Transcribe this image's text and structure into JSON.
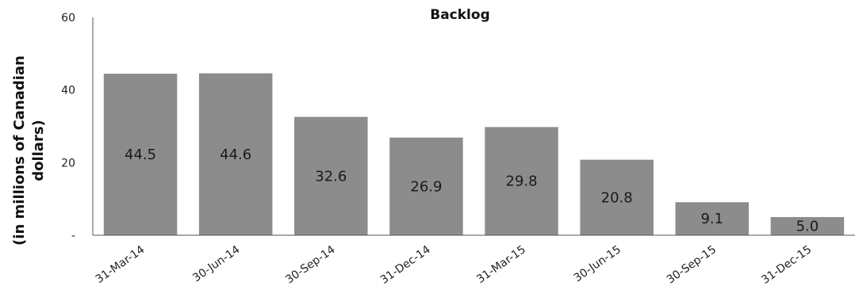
{
  "chart_data": {
    "type": "bar",
    "title": "Backlog",
    "xlabel": "",
    "ylabel_lines": [
      "(in millions of Canadian",
      "dollars)"
    ],
    "categories": [
      "31-Mar-14",
      "30-Jun-14",
      "30-Sep-14",
      "31-Dec-14",
      "31-Mar-15",
      "30-Jun-15",
      "30-Sep-15",
      "31-Dec-15"
    ],
    "values": [
      44.5,
      44.6,
      32.6,
      26.9,
      29.8,
      20.8,
      9.1,
      5.0
    ],
    "data_labels": [
      "44.5",
      "44.6",
      "32.6",
      "26.9",
      "29.8",
      "20.8",
      "9.1",
      "5.0"
    ],
    "yticks": [
      {
        "value": 0,
        "label": "-"
      },
      {
        "value": 20,
        "label": "20"
      },
      {
        "value": 40,
        "label": "40"
      },
      {
        "value": 60,
        "label": "60"
      }
    ],
    "ylim": [
      0,
      60
    ],
    "grid": false,
    "legend": "none",
    "bar_color": "#8c8c8c",
    "axis_color": "#555555"
  }
}
